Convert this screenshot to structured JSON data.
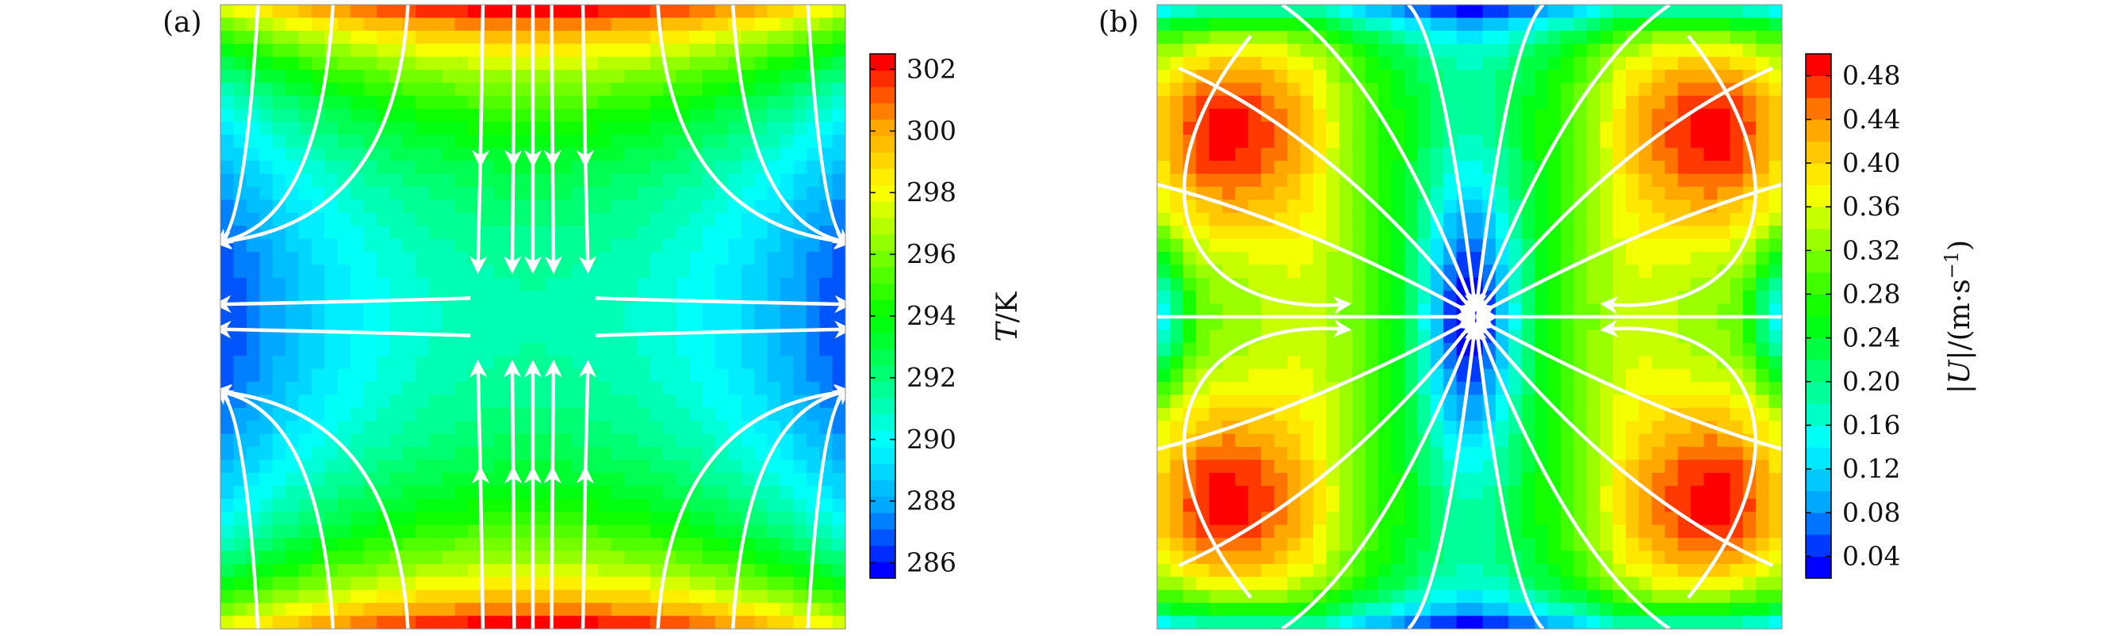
{
  "chart_data": [
    {
      "type": "heatmap",
      "panel_label": "(a)",
      "description_of_field": "temperature contour map with white streamlines",
      "colorbar": {
        "label": "T/K",
        "label_parts": {
          "symbol": "T",
          "unit": "/K"
        },
        "ticks": [
          302,
          300,
          298,
          296,
          294,
          292,
          290,
          288,
          286
        ],
        "range": [
          285.5,
          302.5
        ],
        "levels": 32
      },
      "colors": [
        "#0000ff",
        "#00a5ff",
        "#00ffff",
        "#00ff7f",
        "#00ff00",
        "#7fff00",
        "#ffff00",
        "#ffa500",
        "#ff0000"
      ],
      "streamlines": "white"
    },
    {
      "type": "heatmap",
      "panel_label": "(b)",
      "description_of_field": "velocity magnitude contour map with white streamlines",
      "colorbar": {
        "label": "|U|/(m·s⁻¹)",
        "label_parts": {
          "symbol": "|U|",
          "unit": "/(m·s",
          "exp": "−1",
          "close": ")"
        },
        "ticks": [
          0.48,
          0.44,
          0.4,
          0.36,
          0.32,
          0.28,
          0.24,
          0.2,
          0.16,
          0.12,
          0.08,
          0.04
        ],
        "tick_labels": [
          "0.48",
          "0.44",
          "0.40",
          "0.36",
          "0.32",
          "0.28",
          "0.24",
          "0.20",
          "0.16",
          "0.12",
          "0.08",
          "0.04"
        ],
        "range": [
          0.02,
          0.5
        ],
        "levels": 24
      },
      "colors": [
        "#0000ff",
        "#00a5ff",
        "#00ffff",
        "#00ff7f",
        "#00ff00",
        "#7fff00",
        "#ffff00",
        "#ffa500",
        "#ff0000"
      ],
      "streamlines": "white"
    }
  ]
}
